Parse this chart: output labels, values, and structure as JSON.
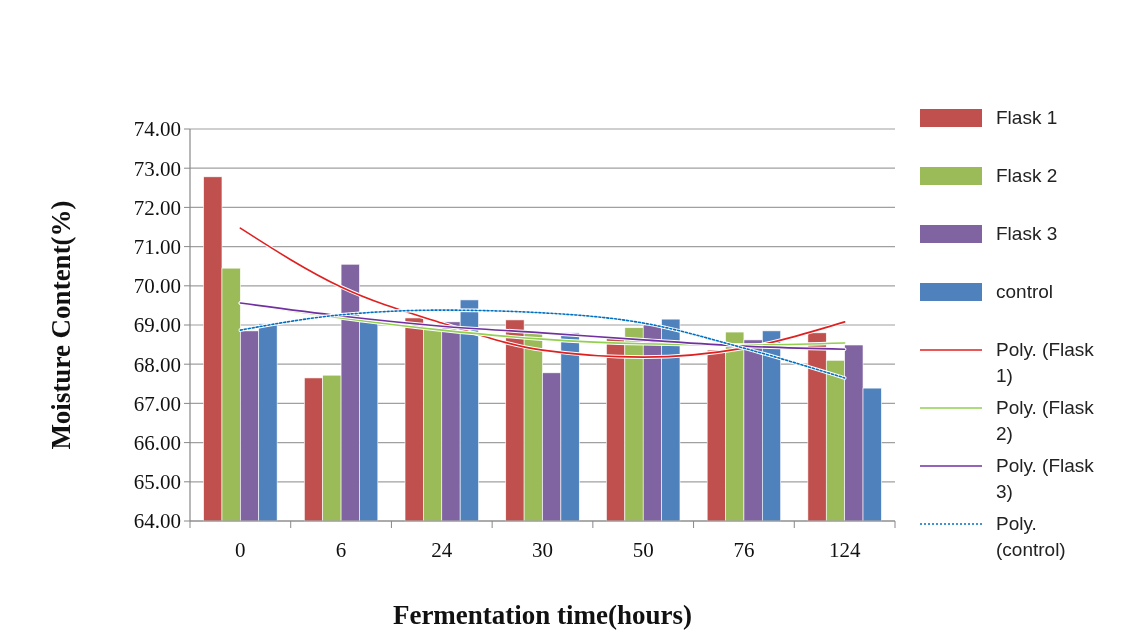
{
  "chart_data": {
    "type": "bar",
    "xlabel": "Fermentation time(hours)",
    "ylabel": "Moisture Content(%)",
    "categories": [
      "0",
      "6",
      "24",
      "30",
      "50",
      "76",
      "124"
    ],
    "series": [
      {
        "name": "Flask 1",
        "color": "#c0504d",
        "values": [
          72.78,
          67.65,
          69.18,
          69.13,
          68.67,
          68.36,
          68.8
        ]
      },
      {
        "name": "Flask 2",
        "color": "#9bbb59",
        "values": [
          70.45,
          67.72,
          68.93,
          68.8,
          68.93,
          68.82,
          68.1
        ]
      },
      {
        "name": "Flask 3",
        "color": "#8064a2",
        "values": [
          68.85,
          70.55,
          69.08,
          67.78,
          69.0,
          68.62,
          68.49
        ]
      },
      {
        "name": "control",
        "color": "#4f81bd",
        "values": [
          69.03,
          69.08,
          69.64,
          68.8,
          69.15,
          68.85,
          67.39
        ]
      },
      {
        "name": "Poly. (Flask 1)",
        "type": "line",
        "color": "#e02020",
        "line_style": "solid",
        "values": [
          71.47,
          69.97,
          69.05,
          68.36,
          68.18,
          68.41,
          69.08
        ]
      },
      {
        "name": "Poly. (Flask 2)",
        "type": "line",
        "color": "#92d050",
        "line_style": "solid",
        "values": [
          69.56,
          69.18,
          68.87,
          68.64,
          68.52,
          68.49,
          68.54
        ]
      },
      {
        "name": "Poly. (Flask 3)",
        "type": "line",
        "color": "#7030a0",
        "line_style": "solid",
        "values": [
          69.56,
          69.23,
          68.97,
          68.8,
          68.62,
          68.46,
          68.38
        ]
      },
      {
        "name": "Poly. (control)",
        "type": "line",
        "color": "#0070c0",
        "line_style": "dotted",
        "values": [
          68.87,
          69.26,
          69.38,
          69.31,
          69.05,
          68.41,
          67.65
        ]
      }
    ],
    "ylim": [
      64,
      74
    ],
    "yticks": [
      {
        "value": 64,
        "label": "64.00"
      },
      {
        "value": 65,
        "label": "65.00"
      },
      {
        "value": 66,
        "label": "66.00"
      },
      {
        "value": 67,
        "label": "67.00"
      },
      {
        "value": 68,
        "label": "68.00"
      },
      {
        "value": 69,
        "label": "69.00"
      },
      {
        "value": 70,
        "label": "70.00"
      },
      {
        "value": 71,
        "label": "71.00"
      },
      {
        "value": 72,
        "label": "72.00"
      },
      {
        "value": 73,
        "label": "73.00"
      },
      {
        "value": 74,
        "label": "74.00"
      }
    ],
    "grid": "y",
    "legend": "right"
  }
}
